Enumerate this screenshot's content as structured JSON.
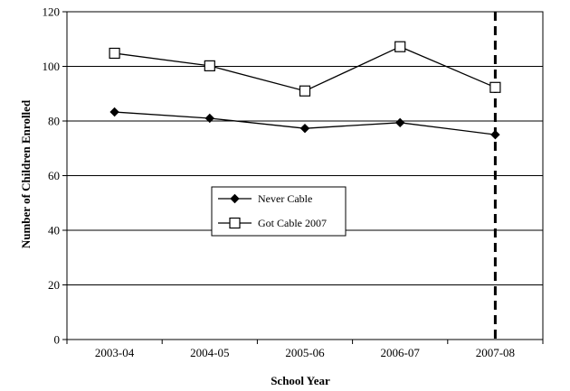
{
  "chart_data": {
    "type": "line",
    "title": "",
    "xlabel": "School Year",
    "ylabel": "Number of Children Enrolled",
    "categories": [
      "2003-04",
      "2004-05",
      "2005-06",
      "2006-07",
      "2007-08"
    ],
    "ylim": [
      0,
      120
    ],
    "yticks": [
      "0",
      "20",
      "40",
      "60",
      "80",
      "100",
      "120"
    ],
    "grid": "horizontal",
    "legend_position": "center-left",
    "series": [
      {
        "name": "Never Cable",
        "marker": "filled-diamond",
        "color": "#000000",
        "values": [
          83.3,
          81.0,
          77.3,
          79.4,
          75.0
        ]
      },
      {
        "name": "Got Cable 2007",
        "marker": "open-square",
        "color": "#000000",
        "values": [
          104.8,
          100.2,
          91.0,
          107.2,
          92.3
        ]
      }
    ],
    "annotations": [
      {
        "type": "vertical-dashed-line",
        "at_category": "2007-08",
        "color": "#000000"
      }
    ]
  }
}
